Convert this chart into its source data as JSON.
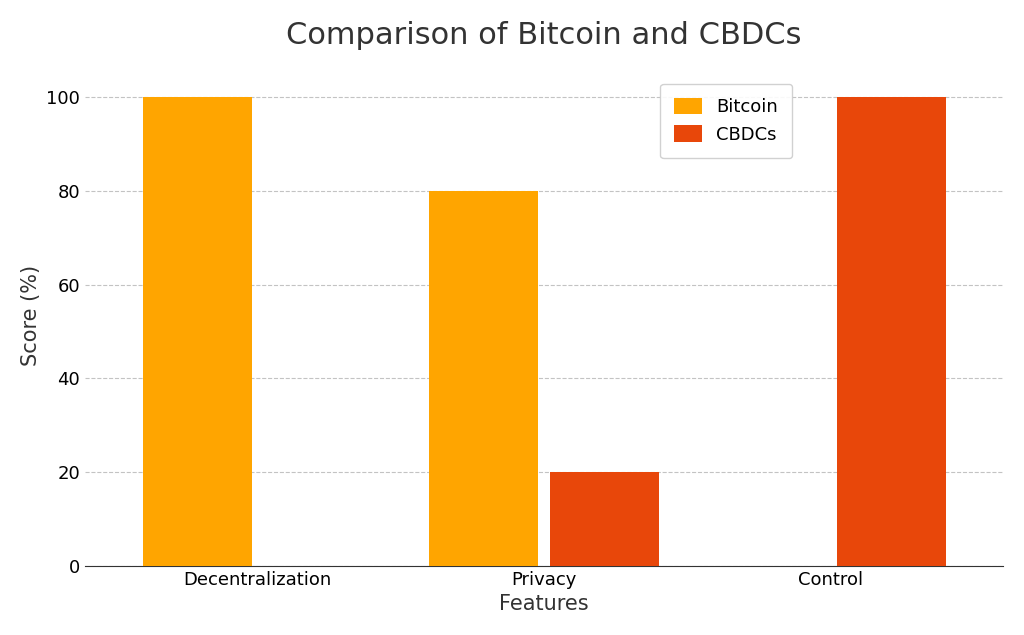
{
  "title": "Comparison of Bitcoin and CBDCs",
  "xlabel": "Features",
  "ylabel": "Score (%)",
  "categories": [
    "Decentralization",
    "Privacy",
    "Control"
  ],
  "bitcoin_values": [
    100,
    80,
    0
  ],
  "cbdc_values": [
    0,
    20,
    100
  ],
  "bitcoin_color": "#FFA500",
  "cbdc_color": "#E8470A",
  "ylim": [
    0,
    107
  ],
  "yticks": [
    0,
    20,
    40,
    60,
    80,
    100
  ],
  "legend_labels": [
    "Bitcoin",
    "CBDCs"
  ],
  "title_fontsize": 22,
  "label_fontsize": 15,
  "tick_fontsize": 13,
  "legend_fontsize": 13,
  "background_color": "#FFFFFF",
  "bar_width": 0.38,
  "bar_gap": 0.04,
  "grid_color": "#AAAAAA",
  "grid_linestyle": "--",
  "grid_alpha": 0.7
}
